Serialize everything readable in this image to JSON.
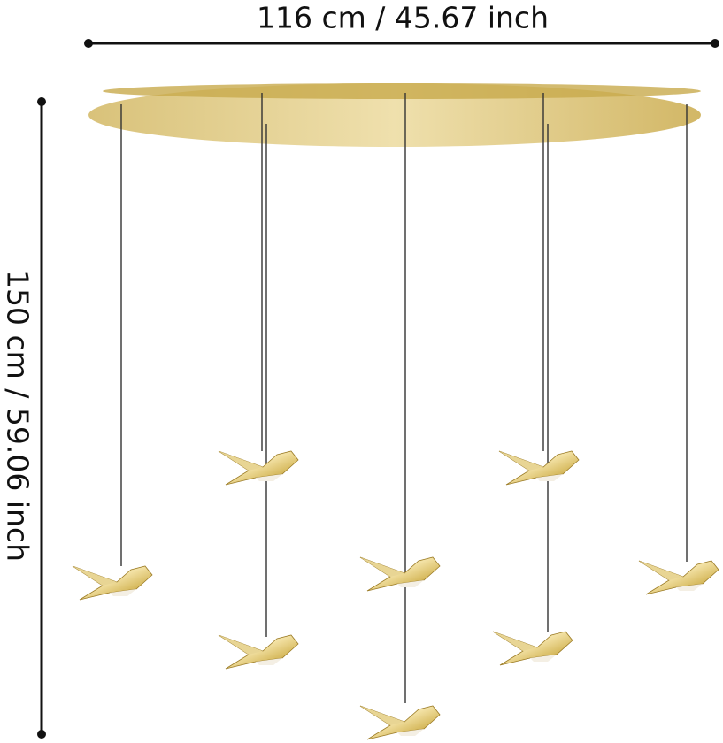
{
  "dimensions": {
    "width": "116 cm / 45.67 inch",
    "height": "150 cm / 59.06 inch"
  }
}
